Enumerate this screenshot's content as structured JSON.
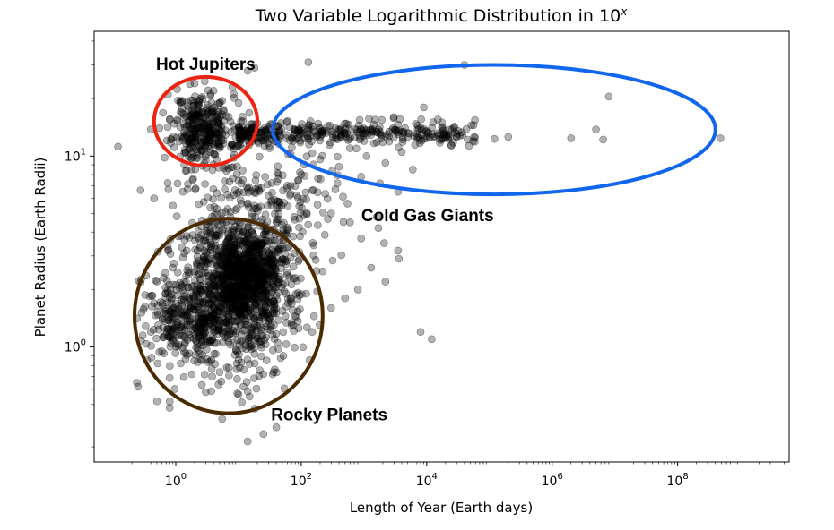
{
  "chart_data": {
    "type": "scatter",
    "title_base": "Two Variable Logarithmic Distribution in 10",
    "title_sup": "x",
    "xlabel": "Length of Year (Earth days)",
    "ylabel": "Planet Radius (Earth Radii)",
    "x_scale": "log",
    "y_scale": "log",
    "xlim": [
      0.05,
      6000000000
    ],
    "ylim": [
      0.25,
      45
    ],
    "grid": false,
    "x_ticks": [
      {
        "value": 1,
        "base": "10",
        "exp": "0"
      },
      {
        "value": 100,
        "base": "10",
        "exp": "2"
      },
      {
        "value": 10000,
        "base": "10",
        "exp": "4"
      },
      {
        "value": 1000000,
        "base": "10",
        "exp": "6"
      },
      {
        "value": 100000000,
        "base": "10",
        "exp": "8"
      }
    ],
    "y_ticks": [
      {
        "value": 1,
        "base": "10",
        "exp": "0"
      },
      {
        "value": 10,
        "base": "10",
        "exp": "1"
      }
    ],
    "marker_color": "#000000",
    "marker_opacity": 0.3,
    "cluster_annotations": [
      {
        "label": "Hot Jupiters",
        "color": "#ee2211",
        "center": [
          2.9,
          15.0
        ],
        "x_range": [
          0.45,
          20
        ],
        "y_range": [
          8.9,
          26.0
        ]
      },
      {
        "label": "Cold Gas Giants",
        "color": "#1166ee",
        "center": [
          100000,
          13.5
        ],
        "x_range": [
          35,
          400000000
        ],
        "y_range": [
          6.3,
          30.0
        ]
      },
      {
        "label": "Rocky Planets",
        "color": "#4a2b00",
        "center": [
          6.5,
          1.5
        ],
        "x_range": [
          0.22,
          220
        ],
        "y_range": [
          0.45,
          4.7
        ]
      }
    ],
    "points": [
      [
        0.12,
        11.2
      ],
      [
        0.4,
        13.8
      ],
      [
        0.55,
        14.0
      ],
      [
        0.75,
        21.0
      ],
      [
        0.8,
        15.5
      ],
      [
        1.05,
        22.4
      ],
      [
        1.2,
        17.0
      ],
      [
        1.6,
        12.0
      ],
      [
        2.0,
        24.0
      ],
      [
        2.5,
        20.0
      ],
      [
        3.2,
        18.5
      ],
      [
        4.0,
        22.0
      ],
      [
        5.5,
        19.5
      ],
      [
        7.0,
        16.0
      ],
      [
        8.0,
        23.0
      ],
      [
        10,
        19.0
      ],
      [
        14,
        28.0
      ],
      [
        18,
        29.0
      ],
      [
        1.4,
        10.8
      ],
      [
        2.2,
        10.5
      ],
      [
        3.0,
        9.5
      ],
      [
        5.0,
        11.5
      ],
      [
        9.0,
        12.5
      ],
      [
        13,
        13.5
      ],
      [
        16,
        14.0
      ],
      [
        22,
        13.2
      ],
      [
        30,
        14.3
      ],
      [
        45,
        13.6
      ],
      [
        65,
        14.2
      ],
      [
        90,
        13.8
      ],
      [
        130,
        14.5
      ],
      [
        180,
        12.8
      ],
      [
        250,
        13.2
      ],
      [
        350,
        14.0
      ],
      [
        500,
        13.1
      ],
      [
        700,
        12.5
      ],
      [
        900,
        13.7
      ],
      [
        1300,
        12.9
      ],
      [
        1800,
        13.4
      ],
      [
        2500,
        12.7
      ],
      [
        3500,
        13.0
      ],
      [
        5000,
        12.6
      ],
      [
        7000,
        13.1
      ],
      [
        10000,
        12.4
      ],
      [
        15000,
        12.9
      ],
      [
        22000,
        12.3
      ],
      [
        30000,
        12.6
      ],
      [
        45000,
        12.2
      ],
      [
        120000,
        12.3
      ],
      [
        200000,
        12.6
      ],
      [
        2000000,
        12.4
      ],
      [
        5000000,
        13.8
      ],
      [
        6500000,
        12.2
      ],
      [
        8000000,
        20.5
      ],
      [
        480000000,
        12.4
      ],
      [
        130,
        31.0
      ],
      [
        40000,
        30.0
      ],
      [
        9000,
        18.0
      ],
      [
        3000,
        16.0
      ],
      [
        1500,
        15.5
      ],
      [
        600,
        11.0
      ],
      [
        1100,
        10.0
      ],
      [
        2200,
        9.2
      ],
      [
        4000,
        10.5
      ],
      [
        6000,
        8.5
      ],
      [
        3500,
        6.5
      ],
      [
        1800,
        7.2
      ],
      [
        900,
        7.8
      ],
      [
        400,
        8.8
      ],
      [
        200,
        9.6
      ],
      [
        100,
        8.0
      ],
      [
        60,
        7.0
      ],
      [
        30,
        6.2
      ],
      [
        18,
        5.5
      ],
      [
        300,
        5.0
      ],
      [
        600,
        4.5
      ],
      [
        900,
        3.7
      ],
      [
        1300,
        2.6
      ],
      [
        2200,
        2.2
      ],
      [
        3500,
        3.2
      ],
      [
        3600,
        2.9
      ],
      [
        2100,
        3.5
      ],
      [
        1700,
        4.2
      ],
      [
        1600,
        4.8
      ],
      [
        800,
        2.0
      ],
      [
        500,
        1.8
      ],
      [
        300,
        1.6
      ],
      [
        150,
        1.2
      ],
      [
        8000,
        1.2
      ],
      [
        12000,
        1.1
      ],
      [
        15,
        0.55
      ],
      [
        25,
        0.35
      ],
      [
        40,
        0.38
      ],
      [
        14,
        0.32
      ],
      [
        5.5,
        0.42
      ],
      [
        3.0,
        0.58
      ],
      [
        1.8,
        0.72
      ],
      [
        0.8,
        0.48
      ],
      [
        0.5,
        0.52
      ],
      [
        0.25,
        0.62
      ],
      [
        0.24,
        0.65
      ],
      [
        0.35,
        0.85
      ],
      [
        0.28,
        1.08
      ],
      [
        0.4,
        1.2
      ],
      [
        0.6,
        0.95
      ],
      [
        1.2,
        0.82
      ],
      [
        0.7,
        1.5
      ],
      [
        0.45,
        1.7
      ],
      [
        0.5,
        2.2
      ],
      [
        0.9,
        2.6
      ],
      [
        0.75,
        3.2
      ],
      [
        1.1,
        3.8
      ],
      [
        0.9,
        5.5
      ],
      [
        1.3,
        6.5
      ],
      [
        0.45,
        6.0
      ],
      [
        1.9,
        7.6
      ],
      [
        2.6,
        4.6
      ],
      [
        4.5,
        6.4
      ],
      [
        7,
        8.6
      ],
      [
        11,
        7.2
      ],
      [
        22,
        4.3
      ],
      [
        38,
        3.6
      ],
      [
        55,
        2.8
      ],
      [
        80,
        2.3
      ],
      [
        120,
        1.9
      ],
      [
        160,
        1.45
      ],
      [
        75,
        1.3
      ],
      [
        42,
        1.05
      ],
      [
        28,
        0.85
      ],
      [
        18,
        0.92
      ],
      [
        9.5,
        0.68
      ],
      [
        6.5,
        0.78
      ],
      [
        3.8,
        0.7
      ],
      [
        2.4,
        0.92
      ],
      [
        12,
        0.62
      ],
      [
        35,
        0.72
      ],
      [
        52,
        0.9
      ]
    ],
    "clusters": [
      {
        "name": "hot-jupiter-core",
        "cx": 2.6,
        "cy": 14.0,
        "sx": 0.22,
        "sy": 0.09,
        "n": 320,
        "seed": 11
      },
      {
        "name": "gas-giant-band",
        "x_from": 10,
        "x_to": 60000,
        "cy": 13.2,
        "sy": 0.03,
        "n": 360,
        "seed": 23
      },
      {
        "name": "transition-scatter",
        "cx": 20,
        "cy": 5.5,
        "sx": 0.6,
        "sy": 0.2,
        "n": 260,
        "seed": 37
      },
      {
        "name": "rocky-core",
        "cx": 10,
        "cy": 1.9,
        "sx": 0.45,
        "sy": 0.2,
        "n": 900,
        "seed": 53
      },
      {
        "name": "rocky-dense",
        "cx": 14,
        "cy": 2.4,
        "sx": 0.3,
        "sy": 0.12,
        "n": 500,
        "seed": 71
      },
      {
        "name": "rocky-left",
        "cx": 1.5,
        "cy": 1.4,
        "sx": 0.32,
        "sy": 0.12,
        "n": 280,
        "seed": 89
      }
    ]
  }
}
